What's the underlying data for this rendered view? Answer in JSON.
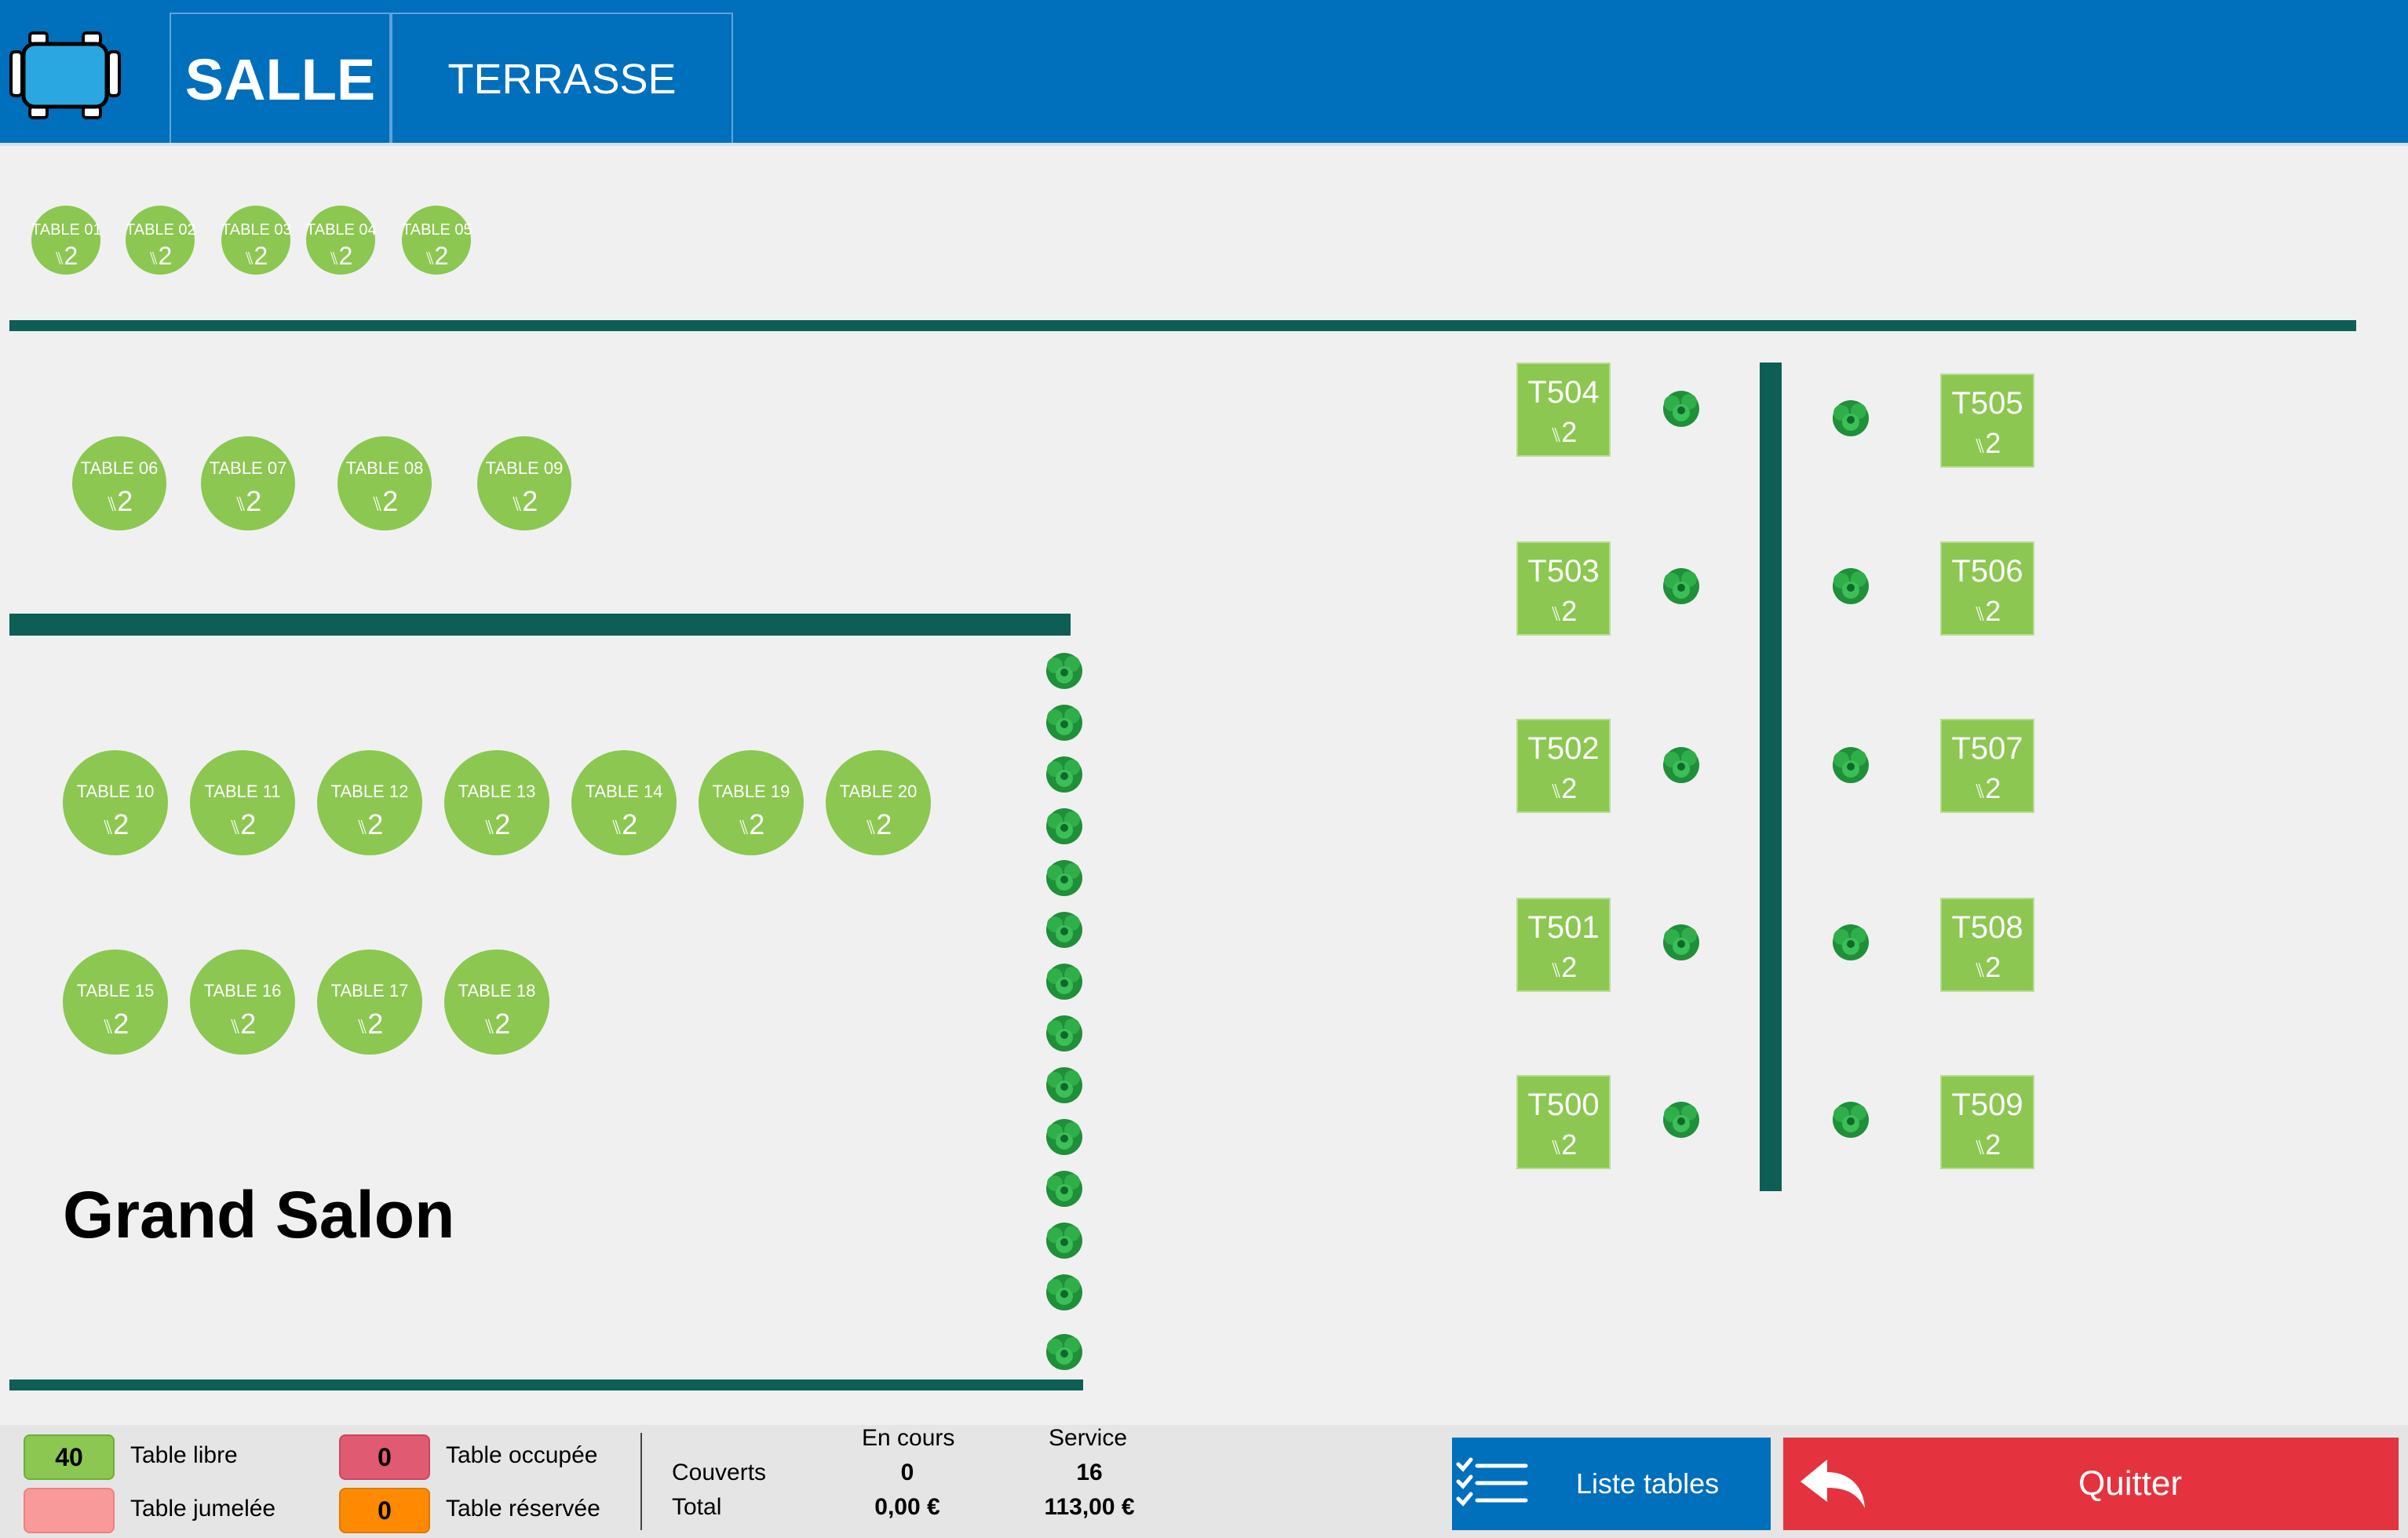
{
  "header": {
    "logo_icon": "dining-table-icon",
    "tabs": [
      {
        "label": "SALLE",
        "active": true
      },
      {
        "label": "TERRASSE",
        "active": false
      }
    ]
  },
  "room": {
    "label": "Grand Salon",
    "decor_icon": "plant-icon",
    "wall_color": "#0d5e55"
  },
  "tables": {
    "round_small": [
      {
        "name": "TABLE 01",
        "covers": "2"
      },
      {
        "name": "TABLE 02",
        "covers": "2"
      },
      {
        "name": "TABLE 03",
        "covers": "2"
      },
      {
        "name": "TABLE 04",
        "covers": "2"
      },
      {
        "name": "TABLE 05",
        "covers": "2"
      }
    ],
    "round_medium": [
      {
        "name": "TABLE 06",
        "covers": "2"
      },
      {
        "name": "TABLE 07",
        "covers": "2"
      },
      {
        "name": "TABLE 08",
        "covers": "2"
      },
      {
        "name": "TABLE 09",
        "covers": "2"
      }
    ],
    "round_large_row1": [
      {
        "name": "TABLE 10",
        "covers": "2"
      },
      {
        "name": "TABLE 11",
        "covers": "2"
      },
      {
        "name": "TABLE 12",
        "covers": "2"
      },
      {
        "name": "TABLE 13",
        "covers": "2"
      },
      {
        "name": "TABLE 14",
        "covers": "2"
      },
      {
        "name": "TABLE 19",
        "covers": "2"
      },
      {
        "name": "TABLE 20",
        "covers": "2"
      }
    ],
    "round_large_row2": [
      {
        "name": "TABLE 15",
        "covers": "2"
      },
      {
        "name": "TABLE 16",
        "covers": "2"
      },
      {
        "name": "TABLE 17",
        "covers": "2"
      },
      {
        "name": "TABLE 18",
        "covers": "2"
      }
    ],
    "square_left": [
      {
        "name": "T504",
        "covers": "2"
      },
      {
        "name": "T503",
        "covers": "2"
      },
      {
        "name": "T502",
        "covers": "2"
      },
      {
        "name": "T501",
        "covers": "2"
      },
      {
        "name": "T500",
        "covers": "2"
      }
    ],
    "square_right": [
      {
        "name": "T505",
        "covers": "2"
      },
      {
        "name": "T506",
        "covers": "2"
      },
      {
        "name": "T507",
        "covers": "2"
      },
      {
        "name": "T508",
        "covers": "2"
      },
      {
        "name": "T509",
        "covers": "2"
      }
    ],
    "free_color": "#8cc751",
    "covers_icon": "cutlery-icon"
  },
  "footer": {
    "legend": [
      {
        "count": "40",
        "label": "Table libre",
        "color": "#8cc751"
      },
      {
        "count": "",
        "label": "Table jumelée",
        "color": "#f99a9a"
      },
      {
        "count": "0",
        "label": "Table occupée",
        "color": "#e05a72"
      },
      {
        "count": "0",
        "label": "Table réservée",
        "color": "#ff8a00"
      }
    ],
    "stats": {
      "col_en_cours": "En cours",
      "col_service": "Service",
      "row_couverts": "Couverts",
      "row_total": "Total",
      "couverts_en_cours": "0",
      "couverts_service": "16",
      "total_en_cours": "0,00 €",
      "total_service": "113,00 €"
    },
    "list_button": {
      "label": "Liste tables",
      "icon": "checklist-icon"
    },
    "quit_button": {
      "label": "Quitter",
      "icon": "back-arrow-icon"
    }
  }
}
